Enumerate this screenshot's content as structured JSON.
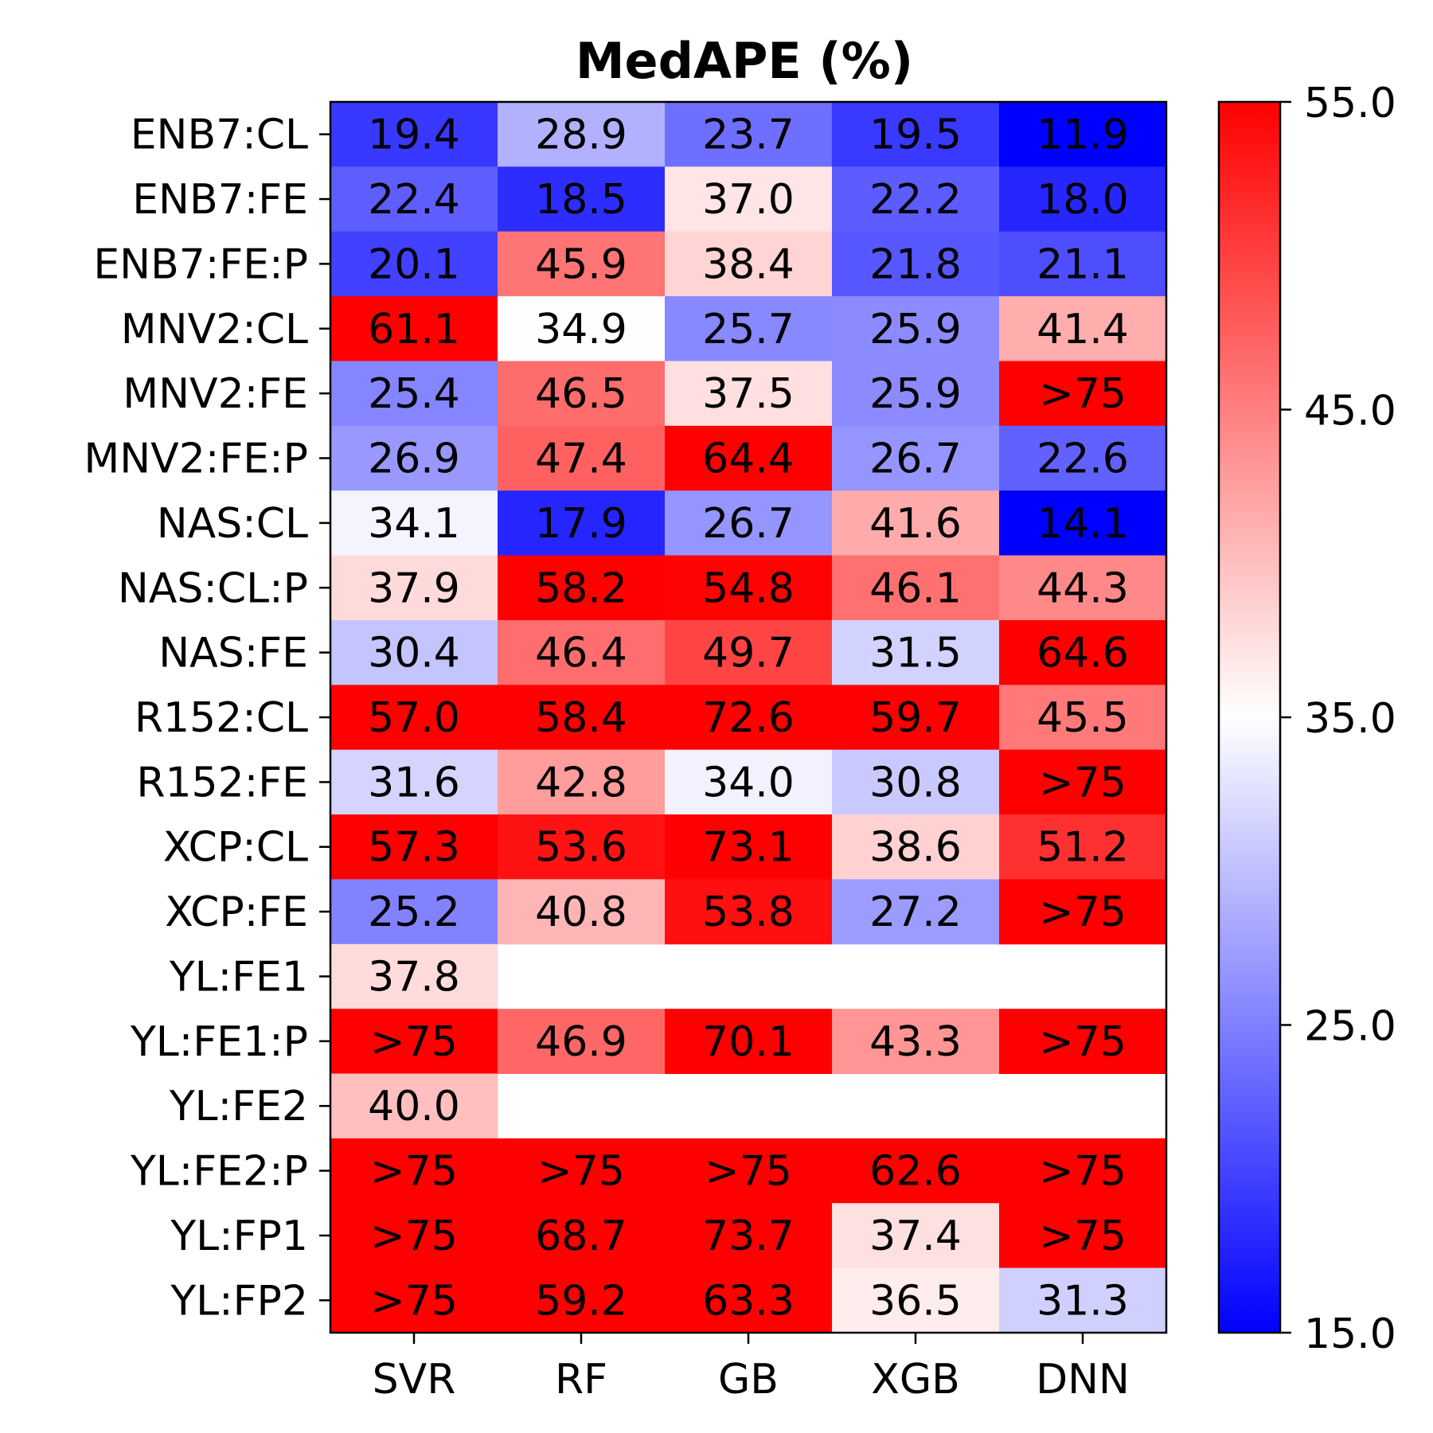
{
  "chart_data": {
    "type": "heatmap",
    "title": "MedAPE (%)",
    "x_labels": [
      "SVR",
      "RF",
      "GB",
      "XGB",
      "DNN"
    ],
    "y_labels": [
      "ENB7:CL",
      "ENB7:FE",
      "ENB7:FE:P",
      "MNV2:CL",
      "MNV2:FE",
      "MNV2:FE:P",
      "NAS:CL",
      "NAS:CL:P",
      "NAS:FE",
      "R152:CL",
      "R152:FE",
      "XCP:CL",
      "XCP:FE",
      "YL:FE1",
      "YL:FE1:P",
      "YL:FE2",
      "YL:FE2:P",
      "YL:FP1",
      "YL:FP2"
    ],
    "cells": [
      [
        "19.4",
        "28.9",
        "23.7",
        "19.5",
        "11.9"
      ],
      [
        "22.4",
        "18.5",
        "37.0",
        "22.2",
        "18.0"
      ],
      [
        "20.1",
        "45.9",
        "38.4",
        "21.8",
        "21.1"
      ],
      [
        "61.1",
        "34.9",
        "25.7",
        "25.9",
        "41.4"
      ],
      [
        "25.4",
        "46.5",
        "37.5",
        "25.9",
        ">75"
      ],
      [
        "26.9",
        "47.4",
        "64.4",
        "26.7",
        "22.6"
      ],
      [
        "34.1",
        "17.9",
        "26.7",
        "41.6",
        "14.1"
      ],
      [
        "37.9",
        "58.2",
        "54.8",
        "46.1",
        "44.3"
      ],
      [
        "30.4",
        "46.4",
        "49.7",
        "31.5",
        "64.6"
      ],
      [
        "57.0",
        "58.4",
        "72.6",
        "59.7",
        "45.5"
      ],
      [
        "31.6",
        "42.8",
        "34.0",
        "30.8",
        ">75"
      ],
      [
        "57.3",
        "53.6",
        "73.1",
        "38.6",
        "51.2"
      ],
      [
        "25.2",
        "40.8",
        "53.8",
        "27.2",
        ">75"
      ],
      [
        "37.8",
        "",
        "",
        "",
        ""
      ],
      [
        ">75",
        "46.9",
        "70.1",
        "43.3",
        ">75"
      ],
      [
        "40.0",
        "",
        "",
        "",
        ""
      ],
      [
        ">75",
        ">75",
        ">75",
        "62.6",
        ">75"
      ],
      [
        ">75",
        "68.7",
        "73.7",
        "37.4",
        ">75"
      ],
      [
        ">75",
        "59.2",
        "63.3",
        "36.5",
        "31.3"
      ]
    ],
    "colormap": {
      "low_color": "#0000ff",
      "mid_color": "#ffffff",
      "high_color": "#ff0000"
    },
    "color_range": [
      15.0,
      55.0
    ],
    "colorbar_ticks": [
      "15.0",
      "25.0",
      "35.0",
      "45.0",
      "55.0"
    ]
  }
}
